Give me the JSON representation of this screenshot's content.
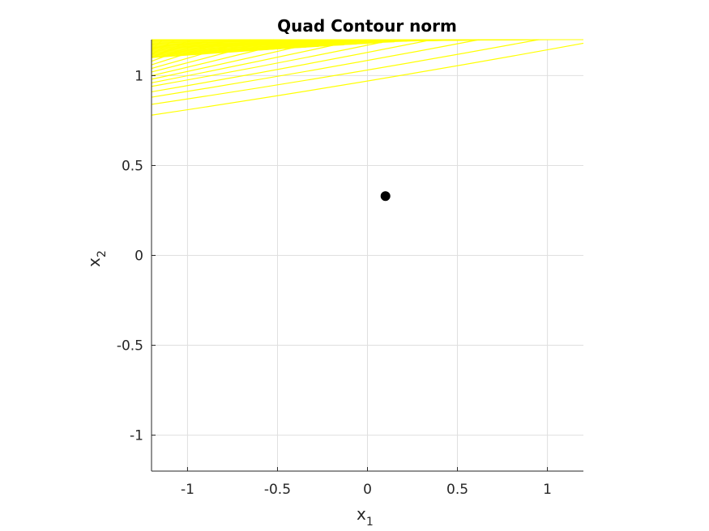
{
  "chart_data": {
    "type": "contour",
    "title": "Quad Contour norm",
    "xlabel": {
      "base": "x",
      "sub": "1"
    },
    "ylabel": {
      "base": "x",
      "sub": "2"
    },
    "xlim": [
      -1.2,
      1.2
    ],
    "ylim": [
      -1.2,
      1.2
    ],
    "xticks": [
      -1,
      -0.5,
      0,
      0.5,
      1
    ],
    "xtick_labels": [
      "-1",
      "-0.5",
      "0",
      "0.5",
      "1"
    ],
    "yticks": [
      -1,
      -0.5,
      0,
      0.5,
      1
    ],
    "ytick_labels": [
      "-1",
      "-0.5",
      "0",
      "0.5",
      "1"
    ],
    "grid": true,
    "contour_color": "#ffff00",
    "marker_color": "#000000",
    "grid_color": "#dfdfdf",
    "point": {
      "x": 0.1,
      "y": 0.33
    },
    "contour_lines": [
      {
        "start": [
          -1.2,
          0.78
        ],
        "end": [
          1.2,
          1.18
        ],
        "bend": 0.02
      },
      {
        "start": [
          -1.2,
          0.84
        ],
        "end": [
          0.95,
          1.2
        ],
        "bend": 0.02
      },
      {
        "start": [
          -1.2,
          0.88
        ],
        "end": [
          0.62,
          1.2
        ],
        "bend": 0.015
      },
      {
        "start": [
          -1.2,
          0.91
        ],
        "end": [
          0.36,
          1.2
        ],
        "bend": 0.012
      },
      {
        "start": [
          -1.2,
          0.94
        ],
        "end": [
          0.15,
          1.2
        ],
        "bend": 0.01
      },
      {
        "start": [
          -1.2,
          0.96
        ],
        "end": [
          -0.05,
          1.2
        ],
        "bend": 0.008
      },
      {
        "start": [
          -1.2,
          0.98
        ],
        "end": [
          -0.22,
          1.2
        ],
        "bend": 0.006
      },
      {
        "start": [
          -1.2,
          1.0
        ],
        "end": [
          -0.38,
          1.2
        ],
        "bend": 0.005
      },
      {
        "start": [
          -1.2,
          1.02
        ],
        "end": [
          -0.52,
          1.2
        ],
        "bend": 0.004
      },
      {
        "start": [
          -1.2,
          1.04
        ],
        "end": [
          -0.65,
          1.2
        ],
        "bend": 0.003
      },
      {
        "start": [
          -1.2,
          1.06
        ],
        "end": [
          -0.77,
          1.2
        ],
        "bend": 0.002
      },
      {
        "start": [
          -1.2,
          1.08
        ],
        "end": [
          -0.88,
          1.2
        ],
        "bend": 0.002
      },
      {
        "start": [
          -1.2,
          1.1
        ],
        "end": [
          -0.98,
          1.2
        ],
        "bend": 0.001
      },
      {
        "start": [
          -1.2,
          1.12
        ],
        "end": [
          -1.07,
          1.2
        ],
        "bend": 0.001
      },
      {
        "start": [
          -1.2,
          1.14
        ],
        "end": [
          -1.14,
          1.2
        ],
        "bend": 0.0
      }
    ],
    "dense_band": {
      "x": [
        -1.2,
        1.2
      ],
      "y": [
        1.1,
        1.2
      ],
      "top_y_at_right": 1.2
    }
  }
}
